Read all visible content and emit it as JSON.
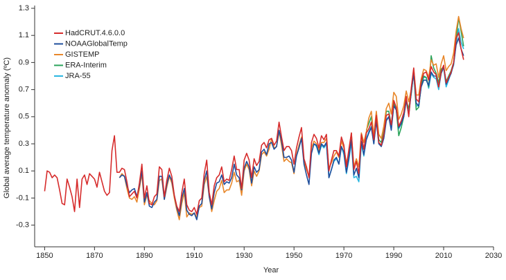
{
  "chart_data": {
    "type": "line",
    "xlabel": "Year",
    "ylabel": "Global average temperature anomaly (ºC)",
    "xlim": [
      1846,
      2030
    ],
    "xticks": [
      1850,
      1870,
      1890,
      1910,
      1930,
      1950,
      1970,
      1990,
      2010,
      2030
    ],
    "ylim": [
      -0.46,
      1.3
    ],
    "yticks": [
      -0.3,
      -0.1,
      0.1,
      0.3,
      0.5,
      0.7,
      0.9,
      1.1,
      1.3
    ],
    "legend": "upper left",
    "x": [
      1850,
      1851,
      1852,
      1853,
      1854,
      1855,
      1856,
      1857,
      1858,
      1859,
      1860,
      1861,
      1862,
      1863,
      1864,
      1865,
      1866,
      1867,
      1868,
      1869,
      1870,
      1871,
      1872,
      1873,
      1874,
      1875,
      1876,
      1877,
      1878,
      1879,
      1880,
      1881,
      1882,
      1883,
      1884,
      1885,
      1886,
      1887,
      1888,
      1889,
      1890,
      1891,
      1892,
      1893,
      1894,
      1895,
      1896,
      1897,
      1898,
      1899,
      1900,
      1901,
      1902,
      1903,
      1904,
      1905,
      1906,
      1907,
      1908,
      1909,
      1910,
      1911,
      1912,
      1913,
      1914,
      1915,
      1916,
      1917,
      1918,
      1919,
      1920,
      1921,
      1922,
      1923,
      1924,
      1925,
      1926,
      1927,
      1928,
      1929,
      1930,
      1931,
      1932,
      1933,
      1934,
      1935,
      1936,
      1937,
      1938,
      1939,
      1940,
      1941,
      1942,
      1943,
      1944,
      1945,
      1946,
      1947,
      1948,
      1949,
      1950,
      1951,
      1952,
      1953,
      1954,
      1955,
      1956,
      1957,
      1958,
      1959,
      1960,
      1961,
      1962,
      1963,
      1964,
      1965,
      1966,
      1967,
      1968,
      1969,
      1970,
      1971,
      1972,
      1973,
      1974,
      1975,
      1976,
      1977,
      1978,
      1979,
      1980,
      1981,
      1982,
      1983,
      1984,
      1985,
      1986,
      1987,
      1988,
      1989,
      1990,
      1991,
      1992,
      1993,
      1994,
      1995,
      1996,
      1997,
      1998,
      1999,
      2000,
      2001,
      2002,
      2003,
      2004,
      2005,
      2006,
      2007,
      2008,
      2009,
      2010,
      2011,
      2012,
      2013,
      2014,
      2015,
      2016,
      2017,
      2018
    ],
    "series": [
      {
        "name": "HadCRUT.4.6.0.0",
        "color": "#d62b2b",
        "values": [
          -0.05,
          0.1,
          0.09,
          0.05,
          0.07,
          0.05,
          -0.04,
          -0.14,
          -0.15,
          0.04,
          -0.02,
          -0.09,
          -0.2,
          0.04,
          -0.17,
          0.04,
          0.07,
          0.0,
          0.08,
          0.06,
          0.04,
          -0.02,
          0.09,
          0.02,
          -0.05,
          -0.08,
          -0.06,
          0.25,
          0.36,
          0.09,
          0.09,
          0.12,
          0.11,
          0.02,
          -0.09,
          -0.07,
          -0.05,
          -0.1,
          0.01,
          0.15,
          -0.1,
          -0.01,
          -0.14,
          -0.15,
          -0.09,
          -0.07,
          0.13,
          0.11,
          -0.09,
          0.03,
          0.12,
          0.06,
          -0.08,
          -0.16,
          -0.2,
          -0.06,
          0.04,
          -0.15,
          -0.19,
          -0.2,
          -0.17,
          -0.22,
          -0.12,
          -0.1,
          0.08,
          0.18,
          -0.06,
          -0.15,
          -0.01,
          0.05,
          0.07,
          0.13,
          0.02,
          0.04,
          0.03,
          0.11,
          0.21,
          0.11,
          0.11,
          -0.03,
          0.18,
          0.23,
          0.18,
          0.05,
          0.19,
          0.14,
          0.17,
          0.29,
          0.31,
          0.27,
          0.33,
          0.34,
          0.29,
          0.32,
          0.46,
          0.35,
          0.25,
          0.28,
          0.28,
          0.25,
          0.15,
          0.27,
          0.35,
          0.42,
          0.19,
          0.13,
          0.05,
          0.31,
          0.37,
          0.34,
          0.27,
          0.36,
          0.33,
          0.37,
          0.1,
          0.18,
          0.25,
          0.25,
          0.21,
          0.35,
          0.29,
          0.13,
          0.26,
          0.38,
          0.11,
          0.17,
          0.08,
          0.37,
          0.26,
          0.38,
          0.41,
          0.46,
          0.33,
          0.51,
          0.31,
          0.29,
          0.37,
          0.51,
          0.52,
          0.44,
          0.62,
          0.57,
          0.43,
          0.47,
          0.53,
          0.65,
          0.5,
          0.71,
          0.86,
          0.63,
          0.61,
          0.76,
          0.82,
          0.83,
          0.77,
          0.87,
          0.83,
          0.81,
          0.72,
          0.83,
          0.88,
          0.75,
          0.79,
          0.83,
          0.9,
          1.08,
          1.12,
          1.0,
          0.92
        ]
      },
      {
        "name": "NOAAGlobalTemp",
        "color": "#1f4e9c",
        "values": [
          null,
          null,
          null,
          null,
          null,
          null,
          null,
          null,
          null,
          null,
          null,
          null,
          null,
          null,
          null,
          null,
          null,
          null,
          null,
          null,
          null,
          null,
          null,
          null,
          null,
          null,
          null,
          null,
          null,
          null,
          0.05,
          0.07,
          0.06,
          -0.01,
          -0.06,
          -0.04,
          -0.03,
          -0.09,
          -0.01,
          0.1,
          -0.13,
          -0.06,
          -0.16,
          -0.17,
          -0.13,
          -0.11,
          0.06,
          0.06,
          -0.11,
          0.0,
          0.07,
          0.03,
          -0.08,
          -0.17,
          -0.23,
          -0.1,
          -0.03,
          -0.19,
          -0.22,
          -0.23,
          -0.21,
          -0.26,
          -0.16,
          -0.14,
          0.03,
          0.1,
          -0.09,
          -0.18,
          -0.06,
          0.01,
          0.02,
          0.07,
          0.0,
          0.02,
          0.01,
          0.05,
          0.15,
          0.07,
          0.05,
          -0.04,
          0.12,
          0.17,
          0.13,
          0.01,
          0.13,
          0.09,
          0.11,
          0.24,
          0.26,
          0.22,
          0.3,
          0.31,
          0.26,
          0.28,
          0.4,
          0.32,
          0.2,
          0.2,
          0.21,
          0.18,
          0.09,
          0.21,
          0.27,
          0.34,
          0.15,
          0.07,
          0.0,
          0.23,
          0.3,
          0.29,
          0.23,
          0.3,
          0.28,
          0.31,
          0.05,
          0.11,
          0.18,
          0.2,
          0.15,
          0.28,
          0.24,
          0.09,
          0.2,
          0.33,
          0.07,
          0.12,
          0.05,
          0.32,
          0.22,
          0.33,
          0.38,
          0.42,
          0.3,
          0.47,
          0.3,
          0.28,
          0.34,
          0.47,
          0.5,
          0.4,
          0.58,
          0.55,
          0.42,
          0.45,
          0.5,
          0.62,
          0.51,
          0.68,
          0.82,
          0.6,
          0.58,
          0.72,
          0.77,
          0.77,
          0.73,
          0.83,
          0.8,
          0.8,
          0.72,
          0.82,
          0.87,
          0.74,
          0.78,
          0.82,
          0.89,
          1.03,
          1.08,
          1.0,
          0.95
        ]
      },
      {
        "name": "GISTEMP",
        "color": "#e8872a",
        "values": [
          null,
          null,
          null,
          null,
          null,
          null,
          null,
          null,
          null,
          null,
          null,
          null,
          null,
          null,
          null,
          null,
          null,
          null,
          null,
          null,
          null,
          null,
          null,
          null,
          null,
          null,
          null,
          null,
          null,
          null,
          0.05,
          0.08,
          0.06,
          -0.03,
          -0.1,
          -0.11,
          -0.09,
          -0.13,
          -0.03,
          0.08,
          -0.15,
          -0.08,
          -0.12,
          -0.14,
          -0.15,
          -0.12,
          0.03,
          0.04,
          -0.11,
          -0.02,
          0.06,
          0.01,
          -0.1,
          -0.19,
          -0.26,
          -0.14,
          -0.06,
          -0.24,
          -0.21,
          -0.22,
          -0.21,
          -0.24,
          -0.17,
          -0.16,
          0.0,
          0.06,
          -0.09,
          -0.2,
          -0.12,
          -0.05,
          -0.03,
          0.03,
          -0.06,
          -0.04,
          -0.04,
          0.01,
          0.09,
          0.02,
          0.03,
          -0.08,
          0.1,
          0.15,
          0.11,
          -0.01,
          0.1,
          0.06,
          0.1,
          0.22,
          0.24,
          0.21,
          0.26,
          0.34,
          0.27,
          0.28,
          0.39,
          0.29,
          0.17,
          0.19,
          0.17,
          0.16,
          0.08,
          0.22,
          0.29,
          0.35,
          0.17,
          0.11,
          0.06,
          0.27,
          0.32,
          0.3,
          0.25,
          0.31,
          0.31,
          0.34,
          0.12,
          0.16,
          0.21,
          0.24,
          0.2,
          0.32,
          0.27,
          0.16,
          0.23,
          0.38,
          0.13,
          0.19,
          0.13,
          0.38,
          0.31,
          0.39,
          0.49,
          0.54,
          0.36,
          0.54,
          0.37,
          0.34,
          0.43,
          0.56,
          0.6,
          0.52,
          0.68,
          0.65,
          0.48,
          0.52,
          0.58,
          0.69,
          0.61,
          0.7,
          0.85,
          0.66,
          0.66,
          0.78,
          0.85,
          0.84,
          0.79,
          0.92,
          0.88,
          0.89,
          0.79,
          0.89,
          0.95,
          0.84,
          0.87,
          0.89,
          0.97,
          1.13,
          1.24,
          1.15,
          1.08
        ]
      },
      {
        "name": "ERA-Interim",
        "color": "#2aa35a",
        "values": [
          null,
          null,
          null,
          null,
          null,
          null,
          null,
          null,
          null,
          null,
          null,
          null,
          null,
          null,
          null,
          null,
          null,
          null,
          null,
          null,
          null,
          null,
          null,
          null,
          null,
          null,
          null,
          null,
          null,
          null,
          null,
          null,
          null,
          null,
          null,
          null,
          null,
          null,
          null,
          null,
          null,
          null,
          null,
          null,
          null,
          null,
          null,
          null,
          null,
          null,
          null,
          null,
          null,
          null,
          null,
          null,
          null,
          null,
          null,
          null,
          null,
          null,
          null,
          null,
          null,
          null,
          null,
          null,
          null,
          null,
          null,
          null,
          null,
          null,
          null,
          null,
          null,
          null,
          null,
          null,
          null,
          null,
          null,
          null,
          null,
          null,
          null,
          null,
          null,
          null,
          null,
          null,
          null,
          null,
          null,
          null,
          null,
          null,
          null,
          null,
          null,
          null,
          null,
          null,
          null,
          null,
          null,
          null,
          null,
          null,
          null,
          null,
          null,
          null,
          null,
          null,
          null,
          null,
          null,
          null,
          null,
          null,
          null,
          null,
          null,
          null,
          null,
          null,
          null,
          0.4,
          0.45,
          0.5,
          0.33,
          0.52,
          0.33,
          0.31,
          0.39,
          0.54,
          0.54,
          0.44,
          0.6,
          0.55,
          0.36,
          0.42,
          0.5,
          0.62,
          0.56,
          0.67,
          0.83,
          0.55,
          0.57,
          0.73,
          0.8,
          0.79,
          0.72,
          0.95,
          0.86,
          0.82,
          0.75,
          0.85,
          0.87,
          0.76,
          0.8,
          0.84,
          0.9,
          1.07,
          1.23,
          1.13,
          1.02
        ]
      },
      {
        "name": "JRA-55",
        "color": "#29b6e0",
        "values": [
          null,
          null,
          null,
          null,
          null,
          null,
          null,
          null,
          null,
          null,
          null,
          null,
          null,
          null,
          null,
          null,
          null,
          null,
          null,
          null,
          null,
          null,
          null,
          null,
          null,
          null,
          null,
          null,
          null,
          null,
          null,
          null,
          null,
          null,
          null,
          null,
          null,
          null,
          null,
          null,
          null,
          null,
          null,
          null,
          null,
          null,
          null,
          null,
          null,
          null,
          null,
          null,
          null,
          null,
          null,
          null,
          null,
          null,
          null,
          null,
          null,
          null,
          null,
          null,
          null,
          null,
          null,
          null,
          null,
          null,
          null,
          null,
          null,
          null,
          null,
          null,
          null,
          null,
          null,
          null,
          null,
          null,
          null,
          null,
          null,
          null,
          null,
          null,
          null,
          null,
          null,
          null,
          null,
          null,
          null,
          null,
          null,
          null,
          null,
          null,
          null,
          null,
          null,
          null,
          null,
          null,
          null,
          null,
          0.3,
          0.28,
          0.22,
          0.29,
          0.27,
          0.3,
          0.05,
          0.11,
          0.17,
          0.19,
          0.15,
          0.28,
          0.22,
          0.08,
          0.18,
          0.31,
          0.05,
          0.06,
          0.02,
          0.3,
          0.21,
          0.34,
          0.39,
          0.43,
          0.3,
          0.48,
          0.3,
          0.29,
          0.35,
          0.48,
          0.5,
          0.42,
          0.59,
          0.55,
          0.41,
          0.45,
          0.52,
          0.63,
          0.53,
          0.67,
          0.84,
          0.58,
          0.58,
          0.73,
          0.79,
          0.79,
          0.71,
          0.82,
          0.79,
          0.78,
          0.7,
          0.82,
          0.86,
          0.72,
          0.77,
          0.83,
          0.88,
          1.04,
          1.15,
          1.05,
          1.0
        ]
      }
    ]
  }
}
